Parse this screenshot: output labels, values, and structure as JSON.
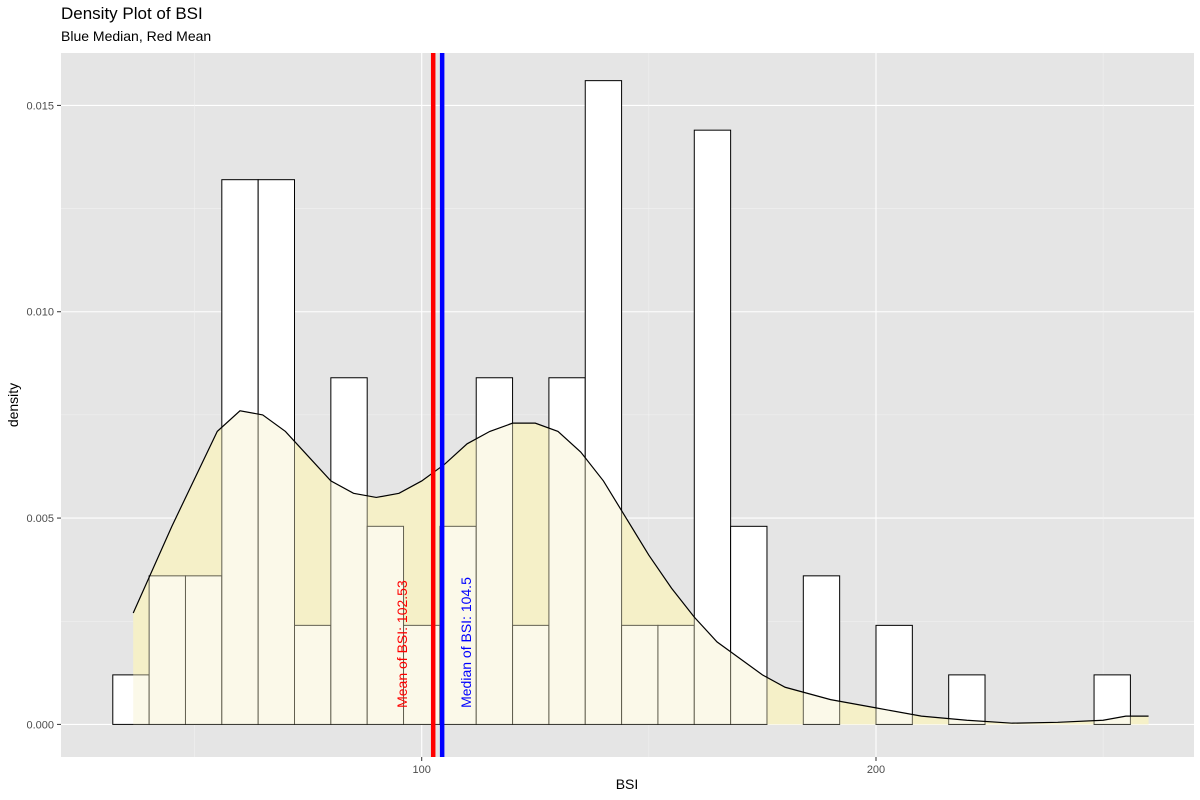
{
  "chart_data": {
    "type": "histogram",
    "title": "Density Plot of BSI",
    "subtitle": "Blue Median, Red Mean",
    "xlabel": "BSI",
    "ylabel": "density",
    "xlim": [
      20.6,
      270
    ],
    "ylim": [
      -0.00079,
      0.01627
    ],
    "x_ticks": [
      100,
      200
    ],
    "x_tick_labels": [
      "100",
      "200"
    ],
    "y_ticks": [
      0,
      0.005,
      0.01,
      0.015
    ],
    "y_tick_labels": [
      "0.000",
      "0.005",
      "0.010",
      "0.015"
    ],
    "grid": true,
    "panel_color": "#e5e5e5",
    "bin_edges": [
      32,
      40,
      48,
      56,
      64,
      72,
      80,
      88,
      96,
      104,
      112,
      120,
      128,
      136,
      144,
      152,
      160,
      168,
      176,
      184,
      192,
      200,
      208,
      216,
      224,
      232,
      240,
      248,
      256
    ],
    "histogram_density": [
      0.0012,
      0.0036,
      0.0036,
      0.0132,
      0.0132,
      0.0024,
      0.0084,
      0.0048,
      0.0024,
      0.0048,
      0.0084,
      0.0024,
      0.0084,
      0.0156,
      0.0024,
      0.0024,
      0.0144,
      0.0048,
      0,
      0.0036,
      0,
      0.0024,
      0,
      0.0012,
      0,
      0,
      0,
      0.0012
    ],
    "histogram_fill": "#ffffff",
    "density_fill": "#f5f0c9",
    "density_fill_opacity": 0.4,
    "density_curve": {
      "x": [
        36.5,
        45,
        55,
        60,
        65,
        70,
        75,
        80,
        85,
        90,
        95,
        100,
        105,
        110,
        115,
        120,
        125,
        130,
        135,
        140,
        145,
        150,
        155,
        160,
        165,
        170,
        175,
        180,
        190,
        200,
        210,
        220,
        230,
        240,
        250,
        255,
        260
      ],
      "y": [
        0.0027,
        0.0048,
        0.0071,
        0.0076,
        0.0075,
        0.0071,
        0.0065,
        0.0059,
        0.0056,
        0.0055,
        0.0056,
        0.0059,
        0.0063,
        0.0068,
        0.0071,
        0.0073,
        0.0073,
        0.0071,
        0.0066,
        0.0059,
        0.005,
        0.0041,
        0.0033,
        0.0026,
        0.002,
        0.0016,
        0.0012,
        0.0009,
        0.0006,
        0.0004,
        0.0002,
        0.0001,
        3e-05,
        5e-05,
        0.0001,
        0.0002,
        0.0002
      ]
    },
    "mean": {
      "value": 102.53,
      "label": "Mean of BSI: 102.53",
      "color": "#ff0000"
    },
    "median": {
      "value": 104.5,
      "label": "Median of BSI: 104.5",
      "color": "#0000ff"
    }
  }
}
